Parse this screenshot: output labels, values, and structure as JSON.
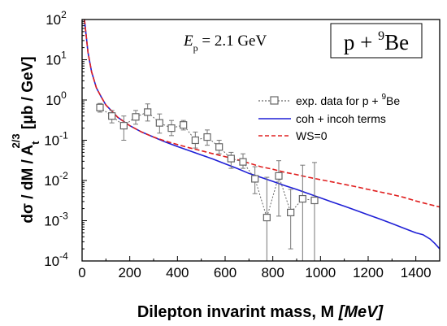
{
  "chart_data": {
    "type": "line",
    "title": "",
    "xlabel_main": "Dilepton invarint mass, M ",
    "xlabel_unit": "[MeV]",
    "ylabel_1": "dσ / dM / A",
    "ylabel_sub": "t",
    "ylabel_sup": "2/3",
    "ylabel_2": " [μb / GeV]",
    "xlim": [
      0,
      1500
    ],
    "ylim": [
      0.0001,
      100
    ],
    "yscale": "log",
    "x_ticks": [
      "0",
      "200",
      "400",
      "600",
      "800",
      "1000",
      "1200",
      "1400"
    ],
    "y_ticks": [
      {
        "base": "10",
        "exp": "2"
      },
      {
        "base": "10",
        "exp": "1"
      },
      {
        "base": "10",
        "exp": "0"
      },
      {
        "base": "10",
        "exp": "-1"
      },
      {
        "base": "10",
        "exp": "-2"
      },
      {
        "base": "10",
        "exp": "-3"
      },
      {
        "base": "10",
        "exp": "-4"
      }
    ],
    "grid": false,
    "legend_position": "right-middle",
    "annotation_energy": {
      "symbol": "E",
      "sub": "p",
      "text": " = 2.1 GeV"
    },
    "annotation_reaction": {
      "pre": "p + ",
      "sup": "9",
      "post": "Be"
    },
    "series": [
      {
        "name": "exp. data for p + 9Be",
        "legend_label": "exp. data for p + ",
        "legend_sup": "9",
        "legend_post": "Be",
        "style": "dotted-square",
        "color": "#555555",
        "points": [
          {
            "x": 75,
            "y": 0.65,
            "lo": 0.5,
            "hi": 0.82
          },
          {
            "x": 125,
            "y": 0.4,
            "lo": 0.27,
            "hi": 0.55
          },
          {
            "x": 175,
            "y": 0.23,
            "lo": 0.1,
            "hi": 0.4
          },
          {
            "x": 225,
            "y": 0.38,
            "lo": 0.25,
            "hi": 0.55
          },
          {
            "x": 275,
            "y": 0.5,
            "lo": 0.3,
            "hi": 0.8
          },
          {
            "x": 325,
            "y": 0.27,
            "lo": 0.15,
            "hi": 0.45
          },
          {
            "x": 375,
            "y": 0.2,
            "lo": 0.13,
            "hi": 0.31
          },
          {
            "x": 425,
            "y": 0.24,
            "lo": 0.18,
            "hi": 0.31
          },
          {
            "x": 475,
            "y": 0.1,
            "lo": 0.064,
            "hi": 0.16
          },
          {
            "x": 525,
            "y": 0.12,
            "lo": 0.075,
            "hi": 0.18
          },
          {
            "x": 575,
            "y": 0.068,
            "lo": 0.046,
            "hi": 0.1
          },
          {
            "x": 625,
            "y": 0.035,
            "lo": 0.02,
            "hi": 0.05
          },
          {
            "x": 675,
            "y": 0.029,
            "lo": 0.02,
            "hi": 0.046
          },
          {
            "x": 725,
            "y": 0.011,
            "lo": 0.0047,
            "hi": 0.022
          },
          {
            "x": 775,
            "y": 0.0012,
            "lo": 0.0001,
            "hi": 0.012
          },
          {
            "x": 825,
            "y": 0.013,
            "lo": 0.0013,
            "hi": 0.031
          },
          {
            "x": 875,
            "y": 0.0016,
            "lo": 0.0002,
            "hi": 0.006
          },
          {
            "x": 925,
            "y": 0.0035,
            "lo": 0.0001,
            "hi": 0.024
          },
          {
            "x": 975,
            "y": 0.0032,
            "lo": 0.0001,
            "hi": 0.028
          }
        ]
      },
      {
        "name": "coh + incoh terms",
        "style": "solid",
        "color": "#1f1fd6",
        "x": [
          10,
          25,
          40,
          60,
          80,
          100,
          150,
          200,
          250,
          300,
          350,
          400,
          450,
          500,
          550,
          600,
          650,
          700,
          750,
          800,
          850,
          900,
          950,
          1000,
          1050,
          1100,
          1150,
          1200,
          1250,
          1300,
          1350,
          1400,
          1430,
          1460,
          1480,
          1500
        ],
        "y": [
          100,
          15,
          5,
          2,
          1.2,
          0.75,
          0.37,
          0.23,
          0.16,
          0.12,
          0.09,
          0.07,
          0.055,
          0.043,
          0.034,
          0.026,
          0.02,
          0.015,
          0.012,
          0.0095,
          0.0075,
          0.006,
          0.0047,
          0.0037,
          0.0029,
          0.0023,
          0.0018,
          0.0014,
          0.0011,
          0.00085,
          0.00065,
          0.0005,
          0.00045,
          0.00035,
          0.00027,
          0.0002
        ]
      },
      {
        "name": "WS=0",
        "style": "dashed",
        "color": "#e02020",
        "x": [
          10,
          25,
          40,
          60,
          80,
          100,
          150,
          200,
          250,
          300,
          350,
          400,
          450,
          500,
          550,
          600,
          650,
          700,
          750,
          800,
          850,
          900,
          950,
          1000,
          1050,
          1100,
          1150,
          1200,
          1250,
          1300,
          1350,
          1400,
          1450,
          1500
        ],
        "y": [
          100,
          15,
          5,
          2,
          1.2,
          0.75,
          0.37,
          0.23,
          0.16,
          0.12,
          0.095,
          0.078,
          0.065,
          0.055,
          0.046,
          0.039,
          0.033,
          0.027,
          0.022,
          0.019,
          0.016,
          0.014,
          0.012,
          0.0105,
          0.0092,
          0.008,
          0.007,
          0.006,
          0.0052,
          0.0045,
          0.0038,
          0.0031,
          0.0026,
          0.0022
        ]
      }
    ]
  }
}
